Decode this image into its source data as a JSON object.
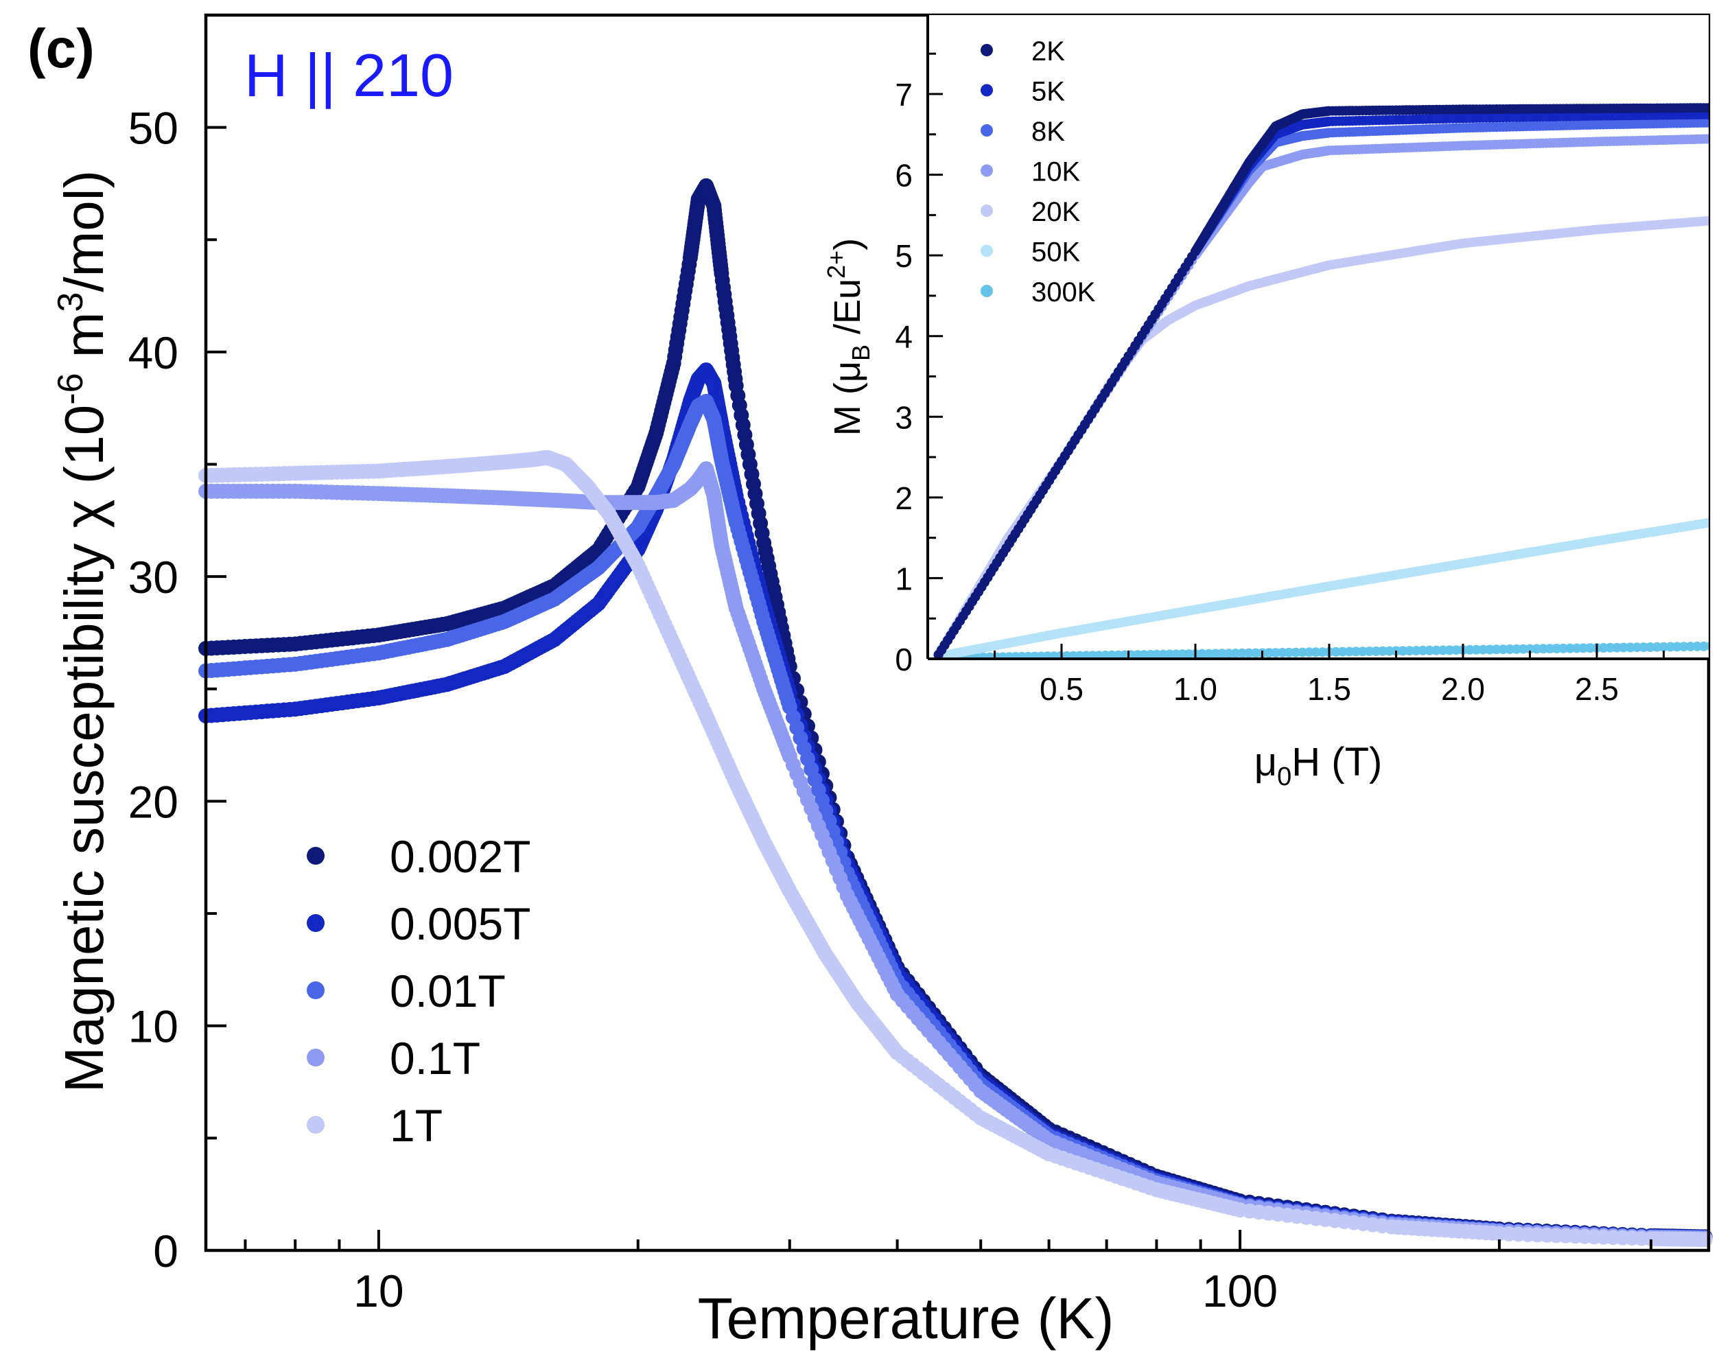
{
  "panel_label": "(c)",
  "field_direction": "H || 210",
  "colors": {
    "field_direction": "#1a1aff",
    "main_series": [
      "#0d1a7a",
      "#1327c2",
      "#4a66e8",
      "#8d9cf2",
      "#c3c9f6"
    ],
    "inset_series": [
      "#0d1a7a",
      "#1327c2",
      "#4a66e8",
      "#8d9cf2",
      "#c3c9f6",
      "#b4e2f8",
      "#64c4ea"
    ]
  },
  "chart_data": [
    {
      "id": "main",
      "type": "scatter",
      "xscale": "log",
      "xlim": [
        6.3,
        350
      ],
      "ylim": [
        0,
        55
      ],
      "xlabel": "Temperature (K)",
      "ylabel": {
        "prefix": "Magnetic susceptibility χ (10",
        "exp1": "-6",
        "mid": " m",
        "exp2": "3",
        "suffix": "/mol)"
      },
      "xticks": [
        10,
        100
      ],
      "xtick_labels": [
        "10",
        "100"
      ],
      "yticks": [
        0,
        10,
        20,
        30,
        40,
        50
      ],
      "ytick_labels": [
        "0",
        "10",
        "20",
        "30",
        "40",
        "50"
      ],
      "legend_position": "lower-left",
      "series": [
        {
          "name": "0.002T",
          "x": [
            6.3,
            8,
            10,
            12,
            14,
            16,
            18,
            20,
            21,
            22,
            23,
            23.5,
            24,
            24.5,
            25,
            26,
            28,
            30,
            35,
            40,
            50,
            60,
            80,
            100,
            150,
            200,
            300,
            350
          ],
          "y": [
            26.8,
            27.0,
            27.4,
            27.9,
            28.6,
            29.6,
            31.2,
            34.0,
            36.4,
            39.5,
            44.2,
            46.8,
            47.4,
            46.5,
            43.5,
            38.5,
            31.5,
            26.0,
            17.5,
            12.6,
            7.8,
            5.4,
            3.3,
            2.2,
            1.3,
            0.95,
            0.65,
            0.6
          ]
        },
        {
          "name": "0.005T",
          "x": [
            6.3,
            8,
            10,
            12,
            14,
            16,
            18,
            20,
            21,
            22,
            23,
            23.5,
            24,
            24.5,
            25,
            26,
            28,
            30,
            35,
            40,
            50,
            60,
            80,
            100,
            150,
            200,
            300,
            350
          ],
          "y": [
            23.8,
            24.1,
            24.6,
            25.2,
            26.0,
            27.2,
            28.8,
            31.2,
            33.0,
            35.2,
            37.8,
            38.8,
            39.2,
            38.6,
            36.8,
            33.6,
            28.8,
            24.8,
            17.2,
            12.4,
            7.6,
            5.2,
            3.2,
            2.1,
            1.25,
            0.9,
            0.62,
            0.58
          ]
        },
        {
          "name": "0.01T",
          "x": [
            6.3,
            8,
            10,
            12,
            14,
            16,
            18,
            20,
            21,
            22,
            23,
            23.5,
            24,
            24.5,
            25,
            26,
            28,
            30,
            35,
            40,
            50,
            60,
            80,
            100,
            150,
            200,
            300,
            350
          ],
          "y": [
            25.8,
            26.1,
            26.6,
            27.2,
            28.0,
            29.0,
            30.4,
            32.2,
            33.6,
            35.0,
            36.8,
            37.6,
            37.8,
            37.0,
            35.2,
            32.4,
            28.0,
            24.2,
            16.8,
            12.0,
            7.4,
            5.1,
            3.1,
            2.05,
            1.2,
            0.88,
            0.6,
            0.56
          ]
        },
        {
          "name": "0.1T",
          "x": [
            6.3,
            8,
            10,
            12,
            14,
            16,
            18,
            20,
            21,
            22,
            23,
            23.5,
            24,
            24.5,
            25,
            26,
            28,
            30,
            35,
            40,
            50,
            60,
            80,
            100,
            150,
            200,
            300,
            350
          ],
          "y": [
            33.8,
            33.8,
            33.7,
            33.6,
            33.5,
            33.4,
            33.3,
            33.3,
            33.3,
            33.4,
            33.9,
            34.3,
            34.8,
            33.6,
            31.4,
            28.6,
            25.0,
            22.0,
            15.8,
            11.4,
            7.1,
            4.9,
            3.0,
            2.0,
            1.15,
            0.85,
            0.58,
            0.54
          ]
        },
        {
          "name": "1T",
          "x": [
            6.3,
            8,
            10,
            12,
            14,
            15,
            15.7,
            16.5,
            17.5,
            18.5,
            20,
            22,
            24,
            26,
            28,
            30,
            33,
            36,
            40,
            50,
            60,
            80,
            100,
            150,
            200,
            300,
            350
          ],
          "y": [
            34.5,
            34.6,
            34.7,
            34.9,
            35.1,
            35.2,
            35.3,
            35.0,
            34.0,
            32.8,
            30.5,
            27.0,
            23.8,
            20.8,
            18.2,
            16.0,
            13.2,
            11.0,
            8.8,
            5.9,
            4.3,
            2.7,
            1.8,
            1.05,
            0.75,
            0.52,
            0.48
          ]
        }
      ]
    },
    {
      "id": "inset",
      "type": "scatter",
      "xlim": [
        0,
        3
      ],
      "ylim": [
        0,
        8
      ],
      "xlabel": {
        "prefix": "μ",
        "sub": "0",
        "suffix": "H (T)"
      },
      "ylabel": {
        "p1": "M (μ",
        "sub": "B",
        "p2": " /Eu",
        "sup": "2+",
        "p3": ")"
      },
      "xticks": [
        0.5,
        1.0,
        1.5,
        2.0,
        2.5
      ],
      "xtick_labels": [
        "0.5",
        "1.0",
        "1.5",
        "2.0",
        "2.5"
      ],
      "yticks": [
        0,
        1,
        2,
        3,
        4,
        5,
        6,
        7
      ],
      "ytick_labels": [
        "0",
        "1",
        "2",
        "3",
        "4",
        "5",
        "6",
        "7"
      ],
      "legend_position": "top-left",
      "series": [
        {
          "name": "2K",
          "x": [
            0.04,
            0.5,
            1.0,
            1.2,
            1.3,
            1.4,
            1.5,
            2.0,
            2.5,
            3.0
          ],
          "y": [
            0.05,
            2.45,
            5.05,
            6.15,
            6.6,
            6.75,
            6.79,
            6.81,
            6.82,
            6.83
          ]
        },
        {
          "name": "5K",
          "x": [
            0.04,
            0.5,
            1.0,
            1.2,
            1.3,
            1.4,
            1.5,
            2.0,
            2.5,
            3.0
          ],
          "y": [
            0.05,
            2.45,
            5.05,
            6.1,
            6.5,
            6.62,
            6.66,
            6.7,
            6.73,
            6.75
          ]
        },
        {
          "name": "8K",
          "x": [
            0.04,
            0.5,
            1.0,
            1.2,
            1.3,
            1.4,
            1.5,
            2.0,
            2.5,
            3.0
          ],
          "y": [
            0.05,
            2.45,
            5.05,
            6.05,
            6.4,
            6.48,
            6.52,
            6.58,
            6.62,
            6.65
          ]
        },
        {
          "name": "10K",
          "x": [
            0.04,
            0.5,
            1.0,
            1.2,
            1.25,
            1.4,
            1.5,
            2.0,
            2.5,
            3.0
          ],
          "y": [
            0.05,
            2.45,
            5.0,
            5.9,
            6.1,
            6.25,
            6.3,
            6.36,
            6.41,
            6.45
          ]
        },
        {
          "name": "20K",
          "x": [
            0.04,
            0.3,
            0.5,
            0.7,
            0.8,
            0.9,
            1.0,
            1.2,
            1.5,
            2.0,
            2.5,
            3.0
          ],
          "y": [
            0.05,
            1.5,
            2.45,
            3.5,
            3.95,
            4.2,
            4.38,
            4.62,
            4.88,
            5.15,
            5.32,
            5.45
          ]
        },
        {
          "name": "50K",
          "x": [
            0.04,
            0.5,
            1.0,
            1.5,
            2.0,
            2.5,
            3.0
          ],
          "y": [
            0.03,
            0.32,
            0.61,
            0.9,
            1.18,
            1.46,
            1.73
          ]
        },
        {
          "name": "300K",
          "x": [
            0.04,
            1.0,
            2.0,
            3.0
          ],
          "y": [
            0.01,
            0.06,
            0.11,
            0.16
          ]
        }
      ]
    }
  ]
}
